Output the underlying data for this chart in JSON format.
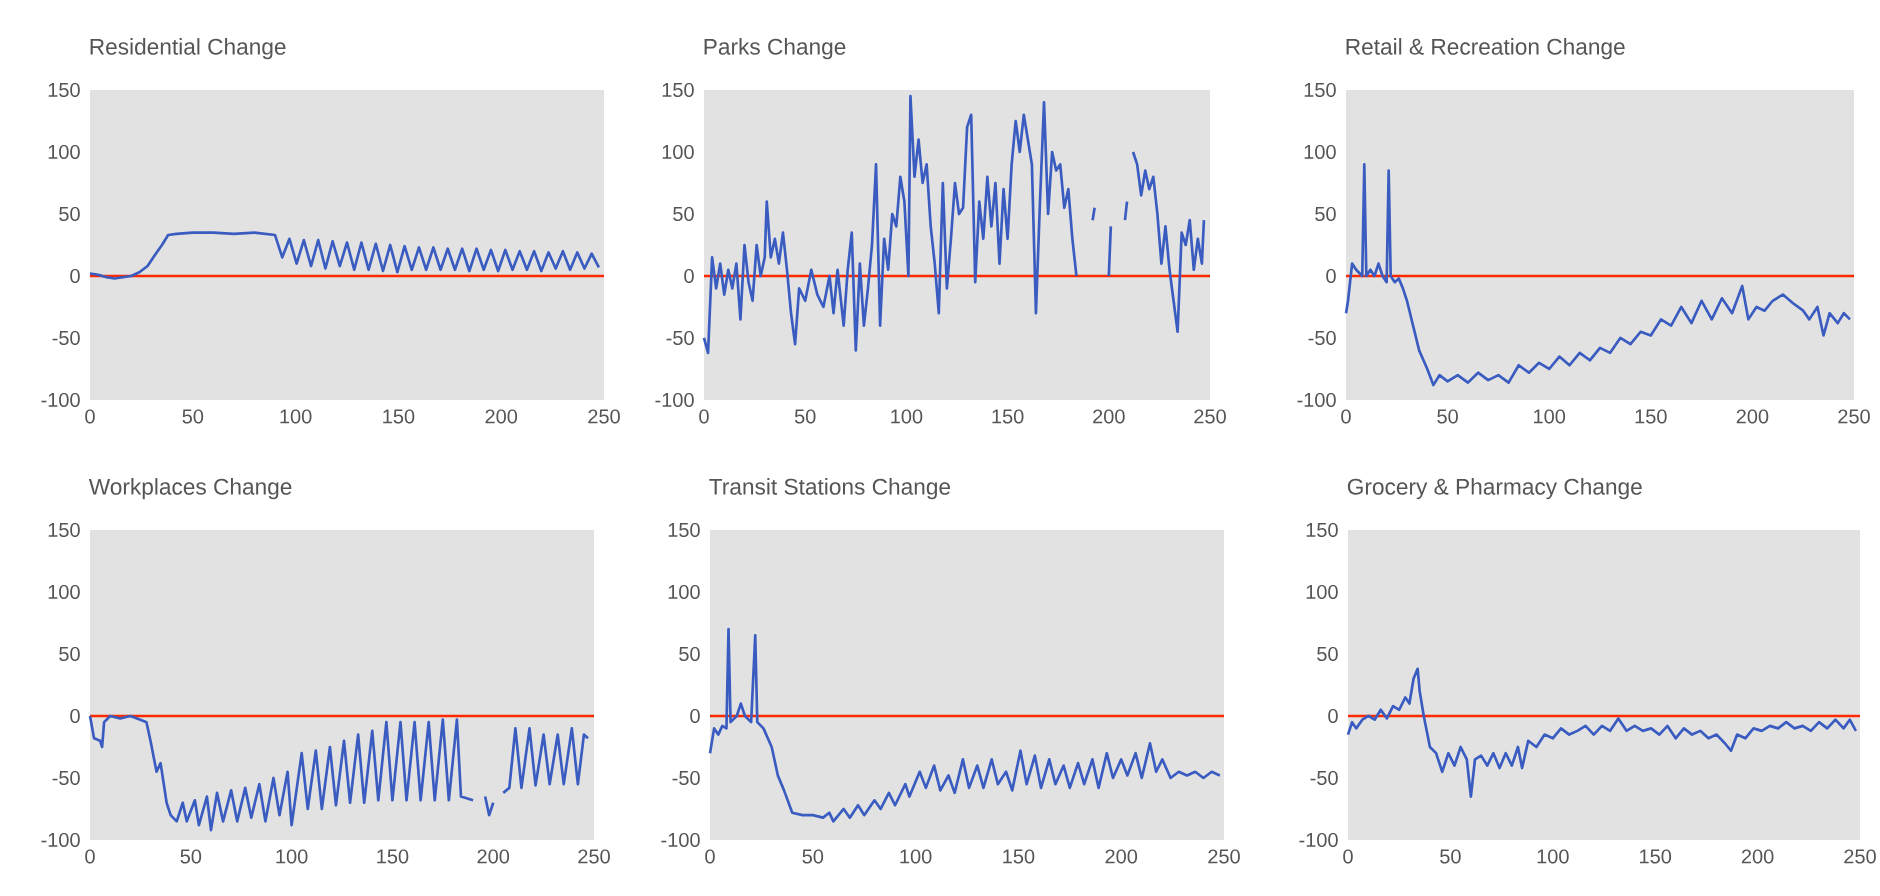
{
  "chart_data": [
    {
      "type": "line",
      "title": "Residential Change",
      "x": [
        0,
        4,
        8,
        12,
        16,
        20,
        24,
        28,
        32,
        35,
        38,
        42,
        50,
        60,
        70,
        80,
        90,
        93.5,
        97,
        100.5,
        104,
        107.5,
        111,
        114.5,
        118,
        121.5,
        125,
        128.5,
        132,
        135.5,
        139,
        142.5,
        146,
        149.5,
        153,
        156.5,
        160,
        163.5,
        167,
        170.5,
        174,
        177.5,
        181,
        184.5,
        188,
        191.5,
        195,
        198.5,
        202,
        205.5,
        209,
        212.5,
        216,
        219.5,
        223,
        226.5,
        230,
        233.5,
        237,
        240.5,
        244,
        247.5
      ],
      "series": [
        {
          "color": "#3a5cc0",
          "values": [
            2,
            1,
            -1,
            -2,
            -1,
            0,
            3,
            8,
            18,
            25,
            33,
            34,
            35,
            35,
            34,
            35,
            33,
            15,
            30,
            10,
            29,
            8,
            29,
            6,
            28,
            8,
            27,
            5,
            27,
            5,
            26,
            4,
            25,
            3,
            24,
            5,
            23,
            5,
            23,
            5,
            22,
            5,
            22,
            4,
            22,
            5,
            21,
            4,
            21,
            5,
            20,
            5,
            20,
            4,
            19,
            6,
            20,
            5,
            19,
            6,
            18,
            7
          ]
        }
      ],
      "xlim": [
        0,
        250
      ],
      "ylim": [
        -100,
        150
      ],
      "xticks": [
        0,
        50,
        100,
        150,
        200,
        250
      ],
      "yticks": [
        -100,
        -50,
        0,
        50,
        100,
        150
      ],
      "ref_lines": [
        {
          "axis": "y",
          "value": 0,
          "color": "#ff2a00"
        }
      ]
    },
    {
      "type": "line",
      "title": "Parks Change",
      "x": [
        0,
        2,
        4,
        6,
        8,
        10,
        12,
        14,
        16,
        18,
        20,
        22,
        24,
        26,
        28,
        30,
        31,
        33,
        35,
        37,
        39,
        41,
        43,
        45,
        47,
        50,
        53,
        56,
        59,
        62,
        64,
        66,
        69,
        71,
        73,
        75,
        77,
        79,
        81,
        83,
        85,
        87,
        89,
        91,
        93,
        95,
        97,
        99,
        101,
        102,
        104,
        106,
        108,
        110,
        112,
        114,
        116,
        118,
        120,
        122,
        124,
        126,
        128,
        130,
        132,
        134,
        136,
        138,
        140,
        142,
        144,
        146,
        148,
        150,
        152,
        154,
        156,
        158,
        160,
        162,
        164,
        166,
        168,
        170,
        172,
        174,
        176,
        178,
        180,
        182,
        184,
        186,
        192,
        193,
        194,
        200,
        201,
        202,
        208,
        209,
        210,
        212,
        214,
        216,
        218,
        220,
        222,
        224,
        226,
        228,
        230,
        232,
        234,
        236,
        238,
        240,
        242,
        244,
        246,
        247
      ],
      "series": [
        {
          "color": "#3a5cc0",
          "values": [
            -50,
            -62,
            15,
            -10,
            10,
            -15,
            5,
            -10,
            10,
            -35,
            25,
            -5,
            -20,
            25,
            0,
            15,
            60,
            15,
            30,
            10,
            35,
            5,
            -30,
            -55,
            -10,
            -20,
            5,
            -15,
            -25,
            0,
            -30,
            5,
            -40,
            5,
            35,
            -60,
            10,
            -40,
            -10,
            25,
            90,
            -40,
            30,
            5,
            50,
            40,
            80,
            60,
            0,
            145,
            80,
            110,
            75,
            90,
            40,
            10,
            -30,
            75,
            -10,
            30,
            75,
            50,
            55,
            120,
            130,
            -5,
            60,
            30,
            80,
            40,
            75,
            10,
            70,
            30,
            90,
            125,
            100,
            130,
            110,
            90,
            -30,
            60,
            140,
            50,
            100,
            85,
            90,
            55,
            70,
            30,
            0,
            null,
            45,
            55,
            null,
            0,
            40,
            null,
            45,
            60,
            null,
            100,
            90,
            65,
            85,
            70,
            80,
            50,
            10,
            40,
            5,
            -20,
            -45,
            35,
            25,
            45,
            5,
            30,
            10,
            45
          ]
        }
      ],
      "xlim": [
        0,
        250
      ],
      "ylim": [
        -100,
        150
      ],
      "xticks": [
        0,
        50,
        100,
        150,
        200,
        250
      ],
      "yticks": [
        -100,
        -50,
        0,
        50,
        100,
        150
      ],
      "ref_lines": [
        {
          "axis": "y",
          "value": 0,
          "color": "#ff2a00"
        }
      ]
    },
    {
      "type": "line",
      "title": "Retail & Recreation Change",
      "x": [
        0,
        1,
        3,
        5,
        8,
        9,
        10,
        12,
        14,
        16,
        18,
        20,
        21,
        22,
        24,
        26,
        28,
        30,
        33,
        36,
        40,
        43,
        46,
        50,
        55,
        60,
        65,
        70,
        75,
        80,
        85,
        90,
        95,
        100,
        105,
        110,
        115,
        120,
        125,
        130,
        135,
        140,
        145,
        150,
        155,
        160,
        165,
        170,
        175,
        180,
        185,
        190,
        195,
        198,
        202,
        206,
        210,
        215,
        220,
        225,
        228,
        232,
        235,
        238,
        242,
        245,
        248
      ],
      "series": [
        {
          "color": "#3a5cc0",
          "values": [
            -30,
            -20,
            10,
            5,
            0,
            90,
            0,
            5,
            0,
            10,
            0,
            -5,
            85,
            0,
            -5,
            -2,
            -10,
            -20,
            -40,
            -60,
            -75,
            -88,
            -80,
            -85,
            -80,
            -86,
            -78,
            -84,
            -80,
            -86,
            -72,
            -78,
            -70,
            -75,
            -65,
            -72,
            -62,
            -68,
            -58,
            -62,
            -50,
            -55,
            -45,
            -48,
            -35,
            -40,
            -25,
            -38,
            -20,
            -35,
            -18,
            -30,
            -8,
            -35,
            -25,
            -28,
            -20,
            -15,
            -22,
            -28,
            -35,
            -25,
            -48,
            -30,
            -38,
            -30,
            -35
          ]
        }
      ],
      "xlim": [
        0,
        250
      ],
      "ylim": [
        -100,
        150
      ],
      "xticks": [
        0,
        50,
        100,
        150,
        200,
        250
      ],
      "yticks": [
        -100,
        -50,
        0,
        50,
        100,
        150
      ],
      "ref_lines": [
        {
          "axis": "y",
          "value": 0,
          "color": "#ff2a00"
        }
      ]
    },
    {
      "type": "line",
      "title": "Workplaces Change",
      "x": [
        0,
        2,
        5,
        6,
        7,
        10,
        15,
        20,
        25,
        28,
        30,
        33,
        35,
        38,
        40,
        43,
        46,
        48,
        52,
        54,
        58,
        60,
        63,
        66,
        70,
        73,
        77,
        80,
        84,
        87,
        91,
        94,
        98,
        100,
        105,
        108,
        112,
        115,
        119,
        122,
        126,
        129,
        133,
        136,
        140,
        143,
        147,
        150,
        154,
        157,
        161,
        164,
        168,
        171,
        175,
        178,
        182,
        184,
        190,
        193,
        196,
        198,
        200,
        202,
        205,
        208,
        211,
        214,
        218,
        221,
        225,
        228,
        232,
        235,
        239,
        242,
        245,
        247
      ],
      "series": [
        {
          "color": "#3a5cc0",
          "values": [
            0,
            -18,
            -20,
            -25,
            -5,
            0,
            -2,
            0,
            -3,
            -5,
            -20,
            -45,
            -38,
            -70,
            -80,
            -85,
            -70,
            -85,
            -68,
            -88,
            -65,
            -92,
            -62,
            -85,
            -60,
            -85,
            -58,
            -82,
            -55,
            -85,
            -50,
            -80,
            -45,
            -88,
            -30,
            -75,
            -28,
            -75,
            -25,
            -72,
            -20,
            -70,
            -15,
            -70,
            -12,
            -68,
            -5,
            -68,
            -5,
            -68,
            -5,
            -68,
            -5,
            -68,
            -3,
            -68,
            -3,
            -65,
            -68,
            null,
            -65,
            -80,
            -70,
            null,
            -62,
            -58,
            -10,
            -58,
            -10,
            -56,
            -15,
            -55,
            -15,
            -55,
            -10,
            -55,
            -15,
            -18
          ]
        }
      ],
      "xlim": [
        0,
        250
      ],
      "ylim": [
        -100,
        150
      ],
      "xticks": [
        0,
        50,
        100,
        150,
        200,
        250
      ],
      "yticks": [
        -100,
        -50,
        0,
        50,
        100,
        150
      ],
      "ref_lines": [
        {
          "axis": "y",
          "value": 0,
          "color": "#ff2a00"
        }
      ]
    },
    {
      "type": "line",
      "title": "Transit Stations Change",
      "x": [
        0,
        2,
        4,
        6,
        8,
        9,
        10,
        13,
        15,
        17,
        20,
        22,
        23,
        26,
        30,
        33,
        36,
        40,
        45,
        50,
        55,
        58,
        60,
        65,
        68,
        72,
        75,
        80,
        83,
        87,
        90,
        95,
        97,
        102,
        105,
        109,
        112,
        116,
        119,
        123,
        126,
        130,
        133,
        137,
        140,
        144,
        147,
        151,
        154,
        158,
        161,
        165,
        168,
        172,
        175,
        179,
        182,
        186,
        189,
        193,
        196,
        200,
        203,
        207,
        210,
        214,
        217,
        220,
        224,
        228,
        232,
        236,
        240,
        244,
        248
      ],
      "series": [
        {
          "color": "#3a5cc0",
          "values": [
            -30,
            -10,
            -15,
            -8,
            -10,
            70,
            -5,
            0,
            10,
            0,
            -5,
            65,
            -5,
            -10,
            -25,
            -48,
            -60,
            -78,
            -80,
            -80,
            -82,
            -78,
            -85,
            -75,
            -82,
            -72,
            -80,
            -68,
            -75,
            -62,
            -72,
            -55,
            -65,
            -45,
            -58,
            -40,
            -60,
            -48,
            -62,
            -35,
            -58,
            -40,
            -58,
            -35,
            -55,
            -45,
            -60,
            -28,
            -55,
            -32,
            -58,
            -35,
            -55,
            -40,
            -58,
            -38,
            -55,
            -35,
            -58,
            -30,
            -50,
            -35,
            -48,
            -30,
            -50,
            -22,
            -45,
            -35,
            -50,
            -45,
            -48,
            -45,
            -50,
            -45,
            -48
          ]
        }
      ],
      "xlim": [
        0,
        250
      ],
      "ylim": [
        -100,
        150
      ],
      "xticks": [
        0,
        50,
        100,
        150,
        200,
        250
      ],
      "yticks": [
        -100,
        -50,
        0,
        50,
        100,
        150
      ],
      "ref_lines": [
        {
          "axis": "y",
          "value": 0,
          "color": "#ff2a00"
        }
      ]
    },
    {
      "type": "line",
      "title": "Grocery & Pharmacy Change",
      "x": [
        0,
        2,
        4,
        7,
        10,
        13,
        16,
        19,
        22,
        25,
        28,
        30,
        32,
        34,
        35,
        37,
        40,
        43,
        46,
        49,
        52,
        55,
        58,
        60,
        62,
        65,
        68,
        71,
        74,
        77,
        80,
        83,
        85,
        88,
        92,
        96,
        100,
        104,
        108,
        112,
        116,
        120,
        124,
        128,
        132,
        136,
        140,
        144,
        148,
        152,
        156,
        160,
        164,
        168,
        172,
        176,
        180,
        184,
        187,
        190,
        194,
        198,
        202,
        206,
        210,
        214,
        218,
        222,
        226,
        230,
        234,
        238,
        242,
        245,
        248
      ],
      "series": [
        {
          "color": "#3a5cc0",
          "values": [
            -15,
            -5,
            -10,
            -3,
            0,
            -3,
            5,
            -2,
            8,
            5,
            15,
            10,
            30,
            38,
            20,
            0,
            -25,
            -30,
            -45,
            -30,
            -40,
            -25,
            -35,
            -65,
            -35,
            -32,
            -40,
            -30,
            -42,
            -30,
            -40,
            -25,
            -42,
            -20,
            -25,
            -15,
            -18,
            -10,
            -15,
            -12,
            -8,
            -15,
            -8,
            -12,
            -2,
            -12,
            -8,
            -12,
            -10,
            -15,
            -8,
            -18,
            -10,
            -15,
            -12,
            -18,
            -15,
            -22,
            -28,
            -15,
            -18,
            -10,
            -12,
            -8,
            -10,
            -5,
            -10,
            -8,
            -12,
            -5,
            -10,
            -3,
            -10,
            -3,
            -12
          ]
        }
      ],
      "xlim": [
        0,
        250
      ],
      "ylim": [
        -100,
        150
      ],
      "xticks": [
        0,
        50,
        100,
        150,
        200,
        250
      ],
      "yticks": [
        -100,
        -50,
        0,
        50,
        100,
        150
      ],
      "ref_lines": [
        {
          "axis": "y",
          "value": 0,
          "color": "#ff2a00"
        }
      ]
    }
  ]
}
